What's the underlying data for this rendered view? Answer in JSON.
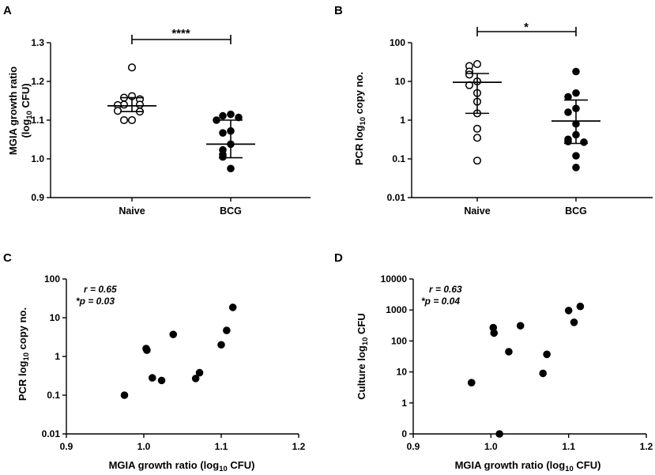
{
  "figure": {
    "panels": [
      {
        "id": "A",
        "label": "A",
        "ylabel_main": "MGIA growth ratio",
        "ylabel_line2": "(log",
        "ylabel_sub": "10",
        "ylabel_end": " CFU)",
        "significance": "****"
      },
      {
        "id": "B",
        "label": "B",
        "ylabel_main": "PCR log",
        "ylabel_sub": "10",
        "ylabel_end": " copy no.",
        "significance": "*"
      },
      {
        "id": "C",
        "label": "C",
        "ylabel_main": "PCR log",
        "ylabel_sub": "10",
        "ylabel_end": " copy no.",
        "xlabel_main": "MGIA growth ratio (log",
        "xlabel_sub": "10",
        "xlabel_end": " CFU)",
        "annotation_r": "r = 0.65",
        "annotation_p": "*p = 0.03"
      },
      {
        "id": "D",
        "label": "D",
        "ylabel_main": "Culture log",
        "ylabel_sub": "10",
        "ylabel_end": " CFU",
        "xlabel_main": "MGIA growth ratio (log",
        "xlabel_sub": "10",
        "xlabel_end": " CFU)",
        "annotation_r": "r = 0.63",
        "annotation_p": "*p = 0.04"
      }
    ]
  },
  "chart_data": [
    {
      "id": "A",
      "type": "scatter",
      "title": "",
      "ylabel": "MGIA growth ratio (log10 CFU)",
      "categories": [
        "Naive",
        "BCG"
      ],
      "ylim": [
        0.9,
        1.3
      ],
      "yticks": [
        0.9,
        1.0,
        1.1,
        1.2,
        1.3
      ],
      "ytick_labels": [
        "0.9",
        "1.0",
        "1.1",
        "1.2",
        "1.3"
      ],
      "groups": [
        {
          "name": "Naive",
          "marker": "open",
          "values": [
            1.236,
            1.162,
            1.158,
            1.154,
            1.14,
            1.14,
            1.139,
            1.124,
            1.122,
            1.1,
            1.1
          ],
          "mean": 1.137,
          "sd": [
            1.122,
            1.158
          ]
        },
        {
          "name": "BCG",
          "marker": "filled",
          "values": [
            1.115,
            1.111,
            1.107,
            1.1,
            1.072,
            1.067,
            1.038,
            1.023,
            1.011,
            1.005,
            0.975
          ],
          "mean": 1.038,
          "sd": [
            1.003,
            1.1
          ]
        }
      ],
      "significance": "****"
    },
    {
      "id": "B",
      "type": "scatter",
      "title": "",
      "ylabel": "PCR log10 copy no.",
      "yscale": "log",
      "categories": [
        "Naive",
        "BCG"
      ],
      "ylim": [
        0.01,
        100
      ],
      "yticks": [
        0.01,
        0.1,
        1,
        10,
        100
      ],
      "ytick_labels": [
        "0.01",
        "0.1",
        "1",
        "10",
        "100"
      ],
      "groups": [
        {
          "name": "Naive",
          "marker": "open",
          "values": [
            28,
            25,
            18,
            15,
            10,
            8,
            5,
            3,
            1.5,
            0.6,
            0.35,
            0.09
          ],
          "mean": 9.5,
          "sd": [
            1.5,
            16
          ]
        },
        {
          "name": "BCG",
          "marker": "filled",
          "values": [
            18,
            5,
            4,
            2,
            1.6,
            0.8,
            0.42,
            0.32,
            0.28,
            0.27,
            0.12,
            0.06
          ],
          "mean": 0.95,
          "sd": [
            0.25,
            3.3
          ]
        }
      ],
      "significance": "*"
    },
    {
      "id": "C",
      "type": "scatter",
      "title": "",
      "xlabel": "MGIA growth ratio (log10 CFU)",
      "ylabel": "PCR log10 copy no.",
      "yscale": "log",
      "xlim": [
        0.9,
        1.2
      ],
      "ylim": [
        0.01,
        100
      ],
      "xticks": [
        0.9,
        1.0,
        1.1,
        1.2
      ],
      "xtick_labels": [
        "0.9",
        "1.0",
        "1.1",
        "1.2"
      ],
      "yticks": [
        0.01,
        0.1,
        1,
        10,
        100
      ],
      "ytick_labels": [
        "0.01",
        "0.1",
        "1",
        "10",
        "100"
      ],
      "x": [
        0.975,
        1.003,
        1.004,
        1.011,
        1.023,
        1.038,
        1.067,
        1.072,
        1.1,
        1.107,
        1.115
      ],
      "y": [
        0.1,
        1.6,
        1.45,
        0.28,
        0.24,
        3.7,
        0.27,
        0.38,
        2.0,
        4.7,
        18.5
      ],
      "annotation": [
        "r = 0.65",
        "*p = 0.03"
      ]
    },
    {
      "id": "D",
      "type": "scatter",
      "title": "",
      "xlabel": "MGIA growth ratio (log10 CFU)",
      "ylabel": "Culture log10 CFU",
      "yscale": "log",
      "xlim": [
        0.9,
        1.2
      ],
      "ylim": [
        0,
        10000
      ],
      "xticks": [
        0.9,
        1.0,
        1.1,
        1.2
      ],
      "xtick_labels": [
        "0.9",
        "1.0",
        "1.1",
        "1.2"
      ],
      "yticks": [
        0,
        1,
        10,
        100,
        1000,
        10000
      ],
      "ytick_labels": [
        "0",
        "1",
        "10",
        "100",
        "1000",
        "10000"
      ],
      "x": [
        0.975,
        1.003,
        1.004,
        1.011,
        1.023,
        1.038,
        1.067,
        1.072,
        1.1,
        1.107,
        1.115
      ],
      "y": [
        4.5,
        270,
        180,
        0,
        45,
        310,
        9,
        37,
        960,
        400,
        1300
      ],
      "annotation": [
        "r = 0.63",
        "*p = 0.04"
      ]
    }
  ]
}
